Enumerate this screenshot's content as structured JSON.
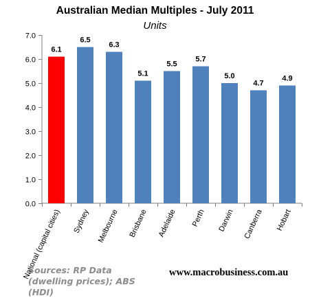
{
  "chart_data": {
    "type": "bar",
    "title": "Australian Median Multiples - July 2011",
    "subtitle": "Units",
    "categories": [
      "National (capital cities)",
      "Sydney",
      "Melbourne",
      "Brisbane",
      "Adelaide",
      "Perth",
      "Darwin",
      "Canberra",
      "Hobart"
    ],
    "values": [
      6.1,
      6.5,
      6.3,
      5.1,
      5.5,
      5.7,
      5.0,
      4.7,
      4.9
    ],
    "data_labels": [
      "6.1",
      "6.5",
      "6.3",
      "5.1",
      "5.5",
      "5.7",
      "5.0",
      "4.7",
      "4.9"
    ],
    "yticks": [
      "0.0",
      "1.0",
      "2.0",
      "3.0",
      "4.0",
      "5.0",
      "6.0",
      "7.0"
    ],
    "ylim": [
      0,
      7
    ],
    "grid": false,
    "colors": {
      "highlight": "#ff0000",
      "bar": "#4f81bd"
    },
    "highlight_index": 0
  },
  "footer": {
    "source": "Sources: RP Data (dwelling prices); ABS (HDI)",
    "site": "www.macrobusiness.com.au"
  }
}
